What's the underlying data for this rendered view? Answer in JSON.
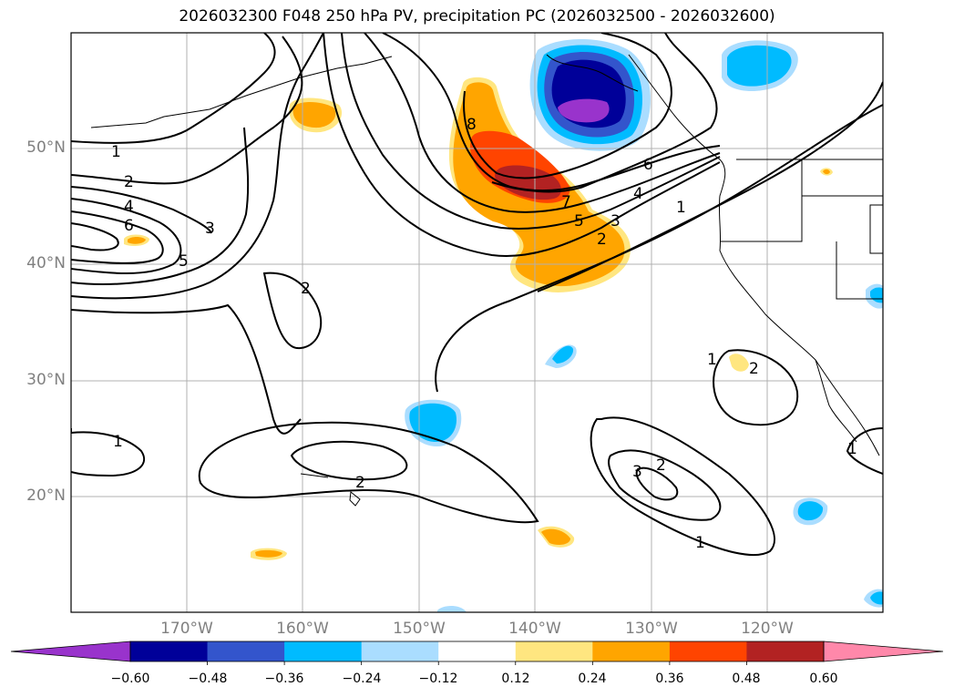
{
  "title": "2026032300 F048 250 hPa PV, precipitation PC (2026032500 - 2026032600)",
  "lat_labels": [
    "50°N",
    "40°N",
    "30°N",
    "20°N"
  ],
  "lon_labels": [
    "170°W",
    "160°W",
    "150°W",
    "140°W",
    "130°W",
    "120°W"
  ],
  "contour_labels": [
    "1",
    "2",
    "4",
    "6",
    "3",
    "5",
    "2",
    "8",
    "7",
    "6",
    "5",
    "4",
    "3",
    "2",
    "1",
    "1",
    "2",
    "1",
    "2",
    "3",
    "2",
    "1",
    "1"
  ],
  "colorbar": {
    "tick_labels": [
      "−0.60",
      "−0.48",
      "−0.36",
      "−0.24",
      "−0.12",
      "0.12",
      "0.24",
      "0.36",
      "0.48",
      "0.60"
    ],
    "colors": [
      "#9933cc",
      "#000099",
      "#3355cc",
      "#00bbff",
      "#aaddff",
      "#ffffff",
      "#ffe680",
      "#ffa500",
      "#ff4400",
      "#b22222",
      "#ff88aa"
    ]
  }
}
